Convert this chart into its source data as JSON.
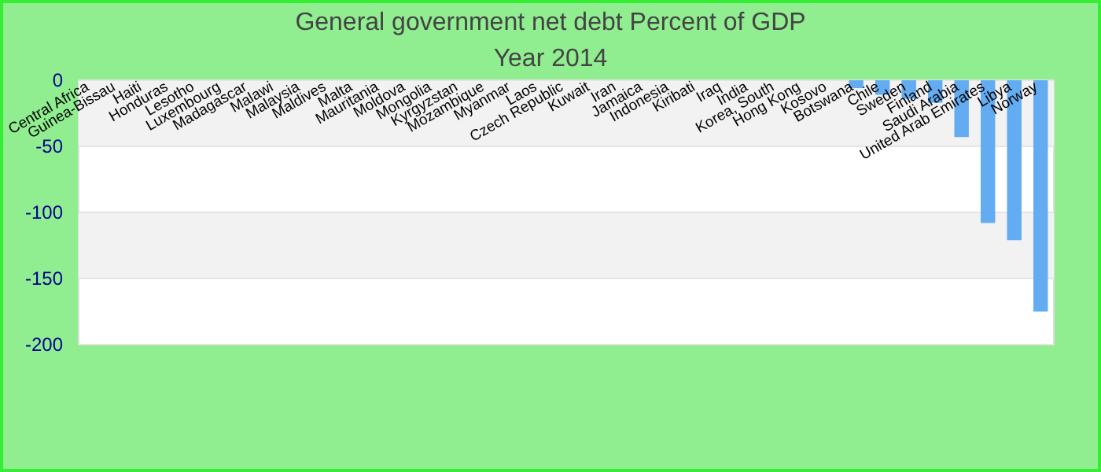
{
  "chart_data": {
    "type": "bar",
    "title": "General government net debt  Percent of GDP",
    "subtitle": "Year 2014",
    "categories": [
      "Central Africa",
      "Guinea-Bissau",
      "Haiti",
      "Honduras",
      "Lesotho",
      "Luxembourg",
      "Madagascar",
      "Malawi",
      "Malaysia",
      "Maldives",
      "Malta",
      "Mauritania",
      "Moldova",
      "Mongolia",
      "Kyrgyzstan",
      "Mozambique",
      "Myanmar",
      "Laos",
      "Czech Republic",
      "Kuwait",
      "Iran",
      "Jamaica",
      "Indonesia",
      "Kiribati",
      "Iraq",
      "India",
      "Korea, South",
      "Hong Kong",
      "Kosovo",
      "Botswana",
      "Chile",
      "Sweden",
      "Finland",
      "Saudi Arabia",
      "United Arab Emirates",
      "Libya",
      "Norway"
    ],
    "values": [
      null,
      null,
      null,
      null,
      null,
      null,
      null,
      null,
      null,
      null,
      null,
      null,
      null,
      null,
      null,
      null,
      null,
      null,
      null,
      null,
      null,
      null,
      null,
      null,
      null,
      null,
      null,
      null,
      null,
      -6,
      -11,
      -14,
      -17,
      -43,
      -108,
      -121,
      -175
    ],
    "color": "#64acf2",
    "ylim": [
      -200,
      0
    ],
    "yticks": [
      -200,
      -150,
      -100,
      -50,
      0
    ],
    "grid": "y"
  }
}
